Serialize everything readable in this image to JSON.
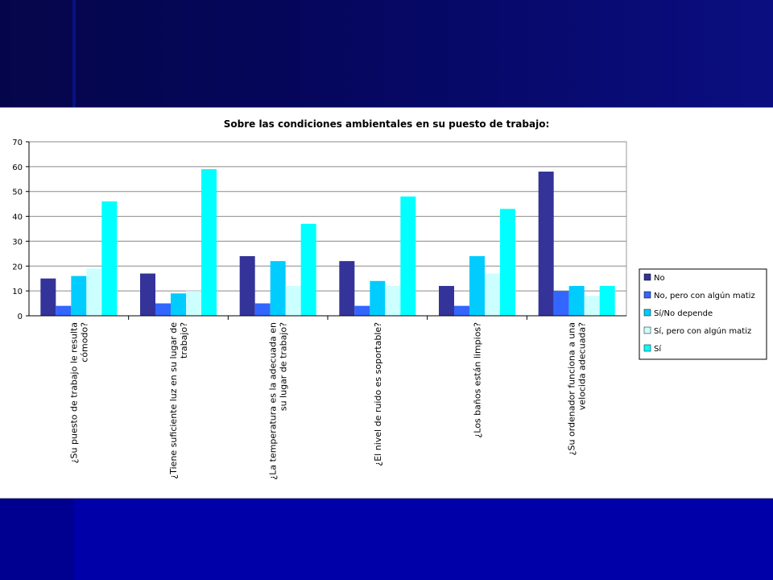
{
  "chart_data": {
    "type": "bar",
    "title": "Sobre las condiciones ambientales en su puesto de trabajo:",
    "xlabel": "",
    "ylabel": "",
    "ylim": [
      0,
      70
    ],
    "yticks": [
      0,
      10,
      20,
      30,
      40,
      50,
      60,
      70
    ],
    "grid": true,
    "legend_position": "right",
    "categories": [
      [
        "¿Su puesto de trabajo le resulta",
        "cómodo?"
      ],
      [
        "¿Tiene suficiente luz en su lugar de",
        "trabajo?"
      ],
      [
        "¿La temperatura es la adecuada en",
        "su lugar de trabajo?"
      ],
      [
        "¿El nivel de ruido es soportable?"
      ],
      [
        "¿Los baños están limpios?"
      ],
      [
        "¿Su ordenador funciona a una",
        "velocida adecuada?"
      ]
    ],
    "series": [
      {
        "name": "No",
        "color": "#333399",
        "values": [
          15,
          17,
          24,
          22,
          12,
          58
        ]
      },
      {
        "name": "No, pero con algún matiz",
        "color": "#3366ff",
        "values": [
          4,
          5,
          5,
          4,
          4,
          10
        ]
      },
      {
        "name": "Sí/No depende",
        "color": "#00ccff",
        "values": [
          16,
          9,
          22,
          14,
          24,
          12
        ]
      },
      {
        "name": "Sí, pero con algún matiz",
        "color": "#ccffff",
        "values": [
          19,
          10,
          12,
          12,
          17,
          8
        ]
      },
      {
        "name": "Sí",
        "color": "#00ffff",
        "values": [
          46,
          59,
          37,
          48,
          43,
          12
        ]
      }
    ]
  }
}
